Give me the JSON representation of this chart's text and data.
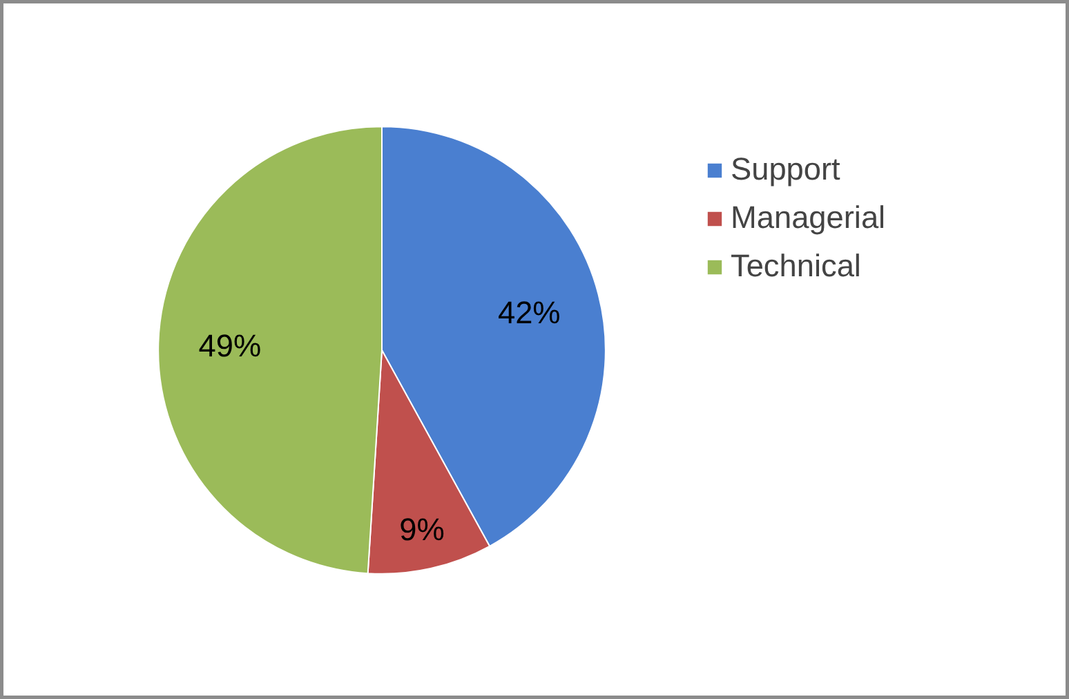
{
  "chart_data": {
    "type": "pie",
    "categories": [
      "Support",
      "Managerial",
      "Technical"
    ],
    "values": [
      42,
      9,
      49
    ],
    "colors": [
      "#4a7fd0",
      "#c0504d",
      "#9bbb59"
    ],
    "value_labels": [
      "42%",
      "9%",
      "49%"
    ],
    "legend": "right"
  }
}
